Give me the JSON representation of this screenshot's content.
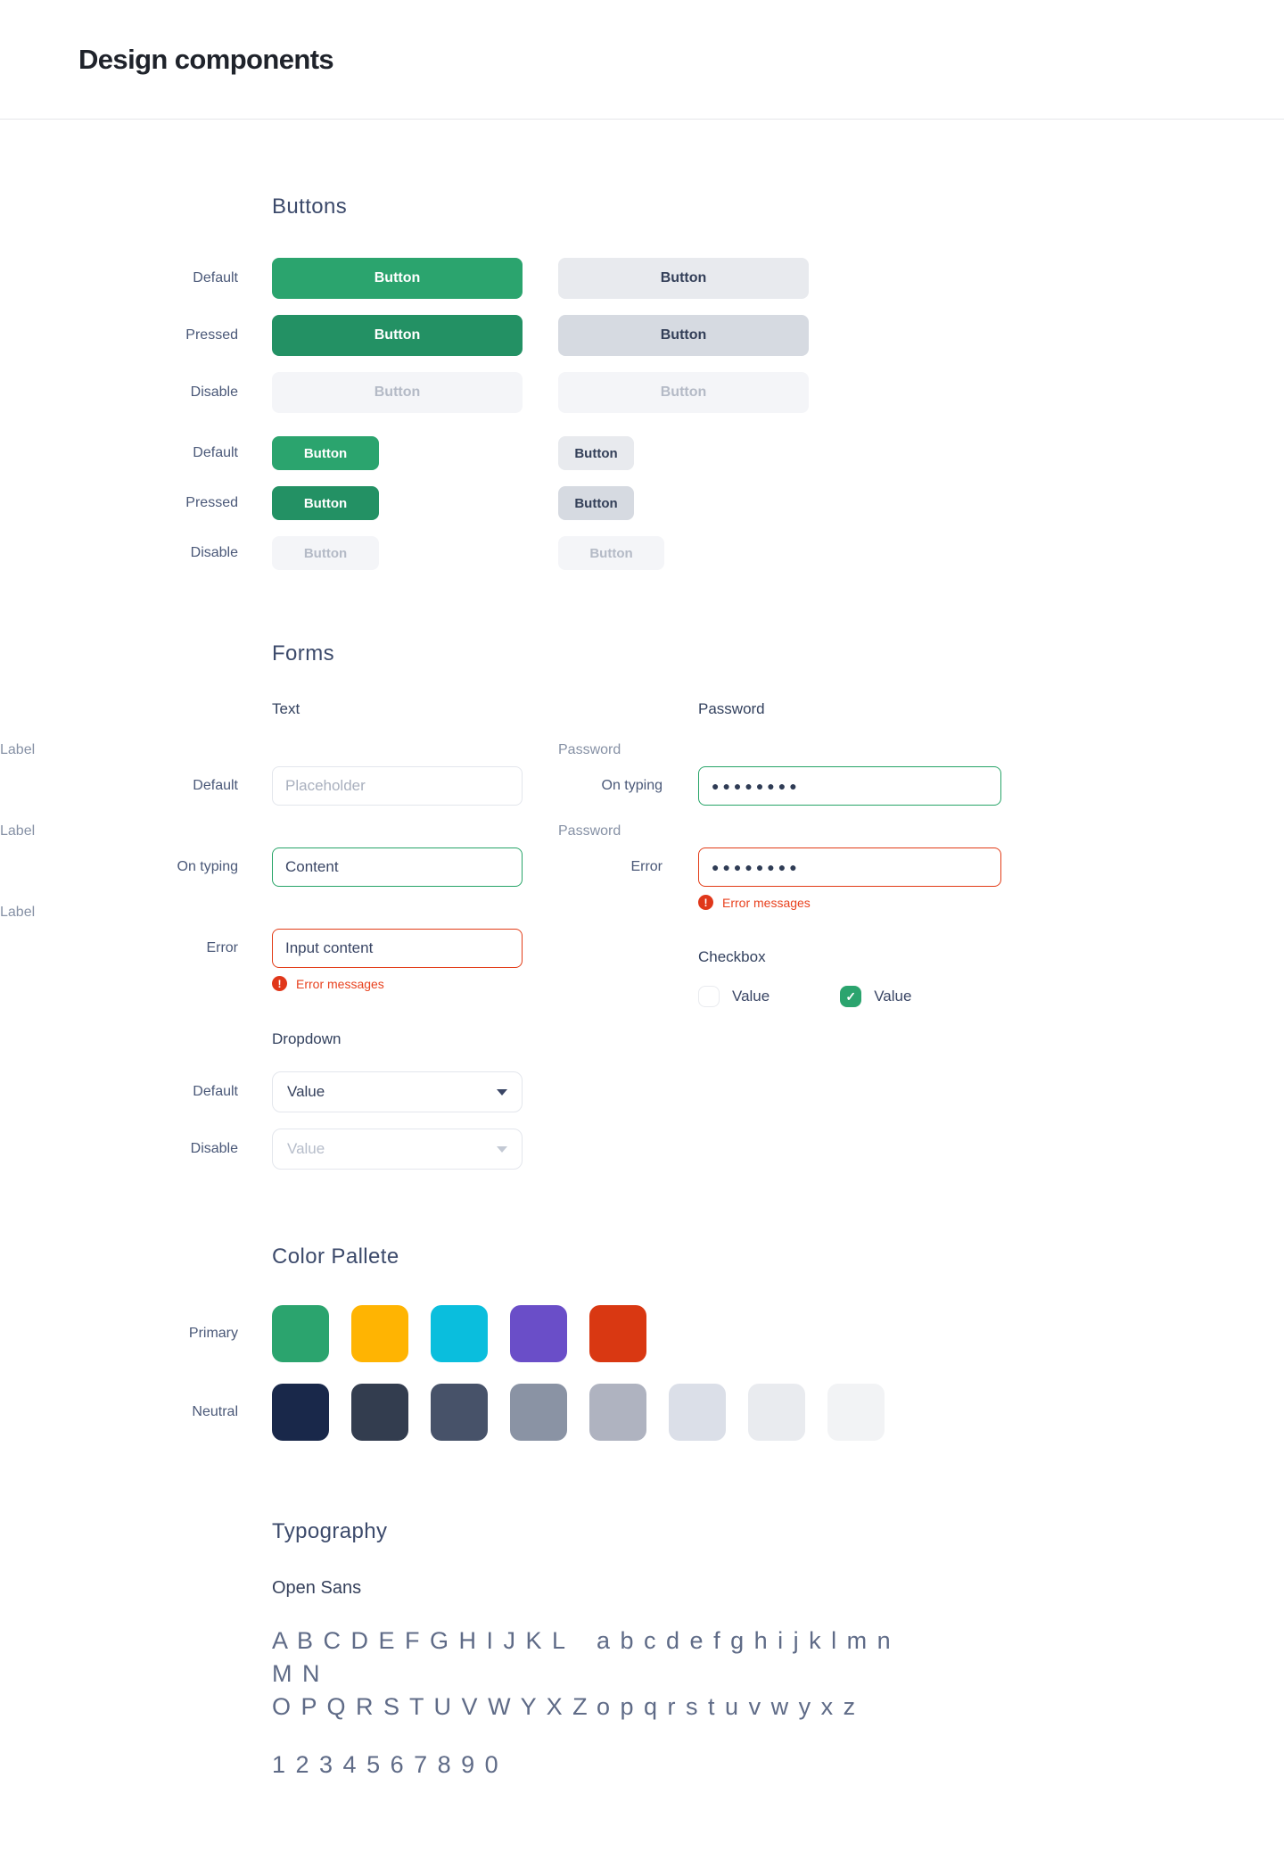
{
  "header": {
    "title": "Design components"
  },
  "buttons": {
    "title": "Buttons",
    "button_label": "Button",
    "rows": [
      {
        "label": "Default"
      },
      {
        "label": "Pressed"
      },
      {
        "label": "Disable"
      },
      {
        "label": "Default"
      },
      {
        "label": "Pressed"
      },
      {
        "label": "Disable"
      }
    ]
  },
  "forms": {
    "title": "Forms",
    "text": {
      "subtitle": "Text",
      "label": "Label",
      "default_row": {
        "state": "Default",
        "placeholder": "Placeholder"
      },
      "typing_row": {
        "state": "On typing",
        "value": "Content"
      },
      "error_row": {
        "state": "Error",
        "value": "Input content",
        "error_message": "Error messages"
      }
    },
    "password": {
      "subtitle": "Password",
      "label": "Password",
      "typing_row": {
        "state": "On typing",
        "value": "●●●●●●●●"
      },
      "error_row": {
        "state": "Error",
        "value": "●●●●●●●●",
        "error_message": "Error messages"
      }
    },
    "dropdown": {
      "subtitle": "Dropdown",
      "default_row": {
        "state": "Default",
        "value": "Value"
      },
      "disable_row": {
        "state": "Disable",
        "value": "Value"
      }
    },
    "checkbox": {
      "subtitle": "Checkbox",
      "unchecked": {
        "label": "Value"
      },
      "checked": {
        "label": "Value"
      }
    }
  },
  "palette": {
    "title": "Color Pallete",
    "primary": {
      "label": "Primary",
      "colors": [
        "#2BA46E",
        "#FFB402",
        "#0ABEDD",
        "#6A4EC8",
        "#D93812"
      ]
    },
    "neutral": {
      "label": "Neutral",
      "colors": [
        "#19284A",
        "#333D4F",
        "#475269",
        "#8A93A4",
        "#AFB3C0",
        "#DBDFE8",
        "#E9EBEF",
        "#F2F3F5"
      ]
    }
  },
  "typography": {
    "title": "Typography",
    "font_name": "Open Sans",
    "line1_upper": "A B C D E F G H I J K L M N",
    "line1_lower": "a b c d e f g h i j k l m n",
    "line2_upper": "O P Q R S T U V W Y X Z",
    "line2_lower": "o p q r s t u v w y x z",
    "numbers": "1 2 3 4 5 6 7 8 9 0"
  },
  "colors": {
    "accent_green": "#2BA46E",
    "accent_green_pressed": "#239164",
    "secondary_gray": "#E8EAEE",
    "secondary_gray_pressed": "#D6DAE1",
    "disabled_bg": "#F4F5F8",
    "disabled_text": "#B4BAC6",
    "error_red": "#E23C17",
    "input_border": "#E3E6EC",
    "text_dark": "#3A4665",
    "label_gray": "#8691A5"
  },
  "icons": {
    "check": "✓",
    "error": "!"
  }
}
